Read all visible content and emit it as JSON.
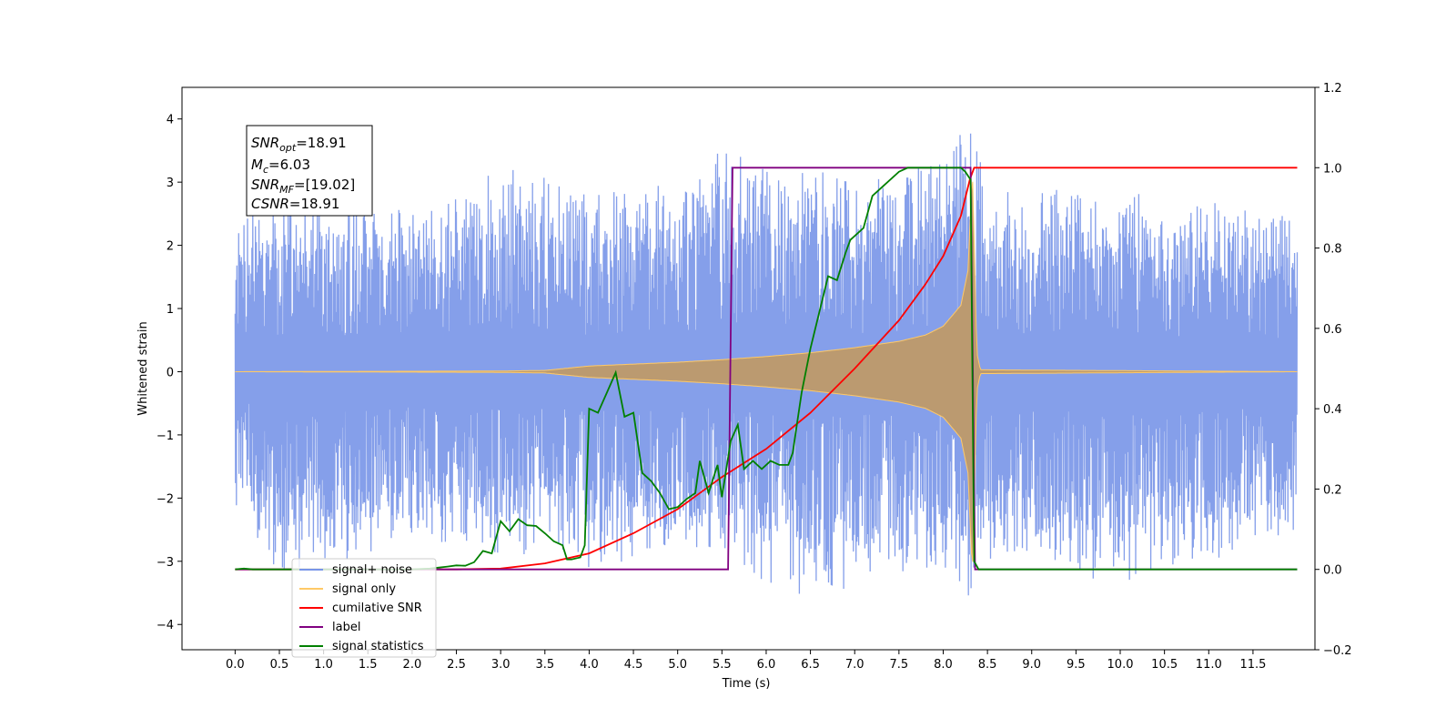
{
  "chart_data": {
    "type": "line",
    "xlabel": "Time (s)",
    "ylabel_left": "Whitened strain",
    "ylabel_right": "",
    "xlim": [
      -0.6,
      12.2
    ],
    "ylim_left": [
      -4.4,
      4.5
    ],
    "ylim_right": [
      -0.2,
      1.2
    ],
    "x_ticks": [
      0.0,
      0.5,
      1.0,
      1.5,
      2.0,
      2.5,
      3.0,
      3.5,
      4.0,
      4.5,
      5.0,
      5.5,
      6.0,
      6.5,
      7.0,
      7.5,
      8.0,
      8.5,
      9.0,
      9.5,
      10.0,
      10.5,
      11.0,
      11.5
    ],
    "x_tick_labels": [
      "0.0",
      "0.5",
      "1.0",
      "1.5",
      "2.0",
      "2.5",
      "3.0",
      "3.5",
      "4.0",
      "4.5",
      "5.0",
      "5.5",
      "6.0",
      "6.5",
      "7.0",
      "7.5",
      "8.0",
      "8.5",
      "9.0",
      "9.5",
      "10.0",
      "10.5",
      "11.0",
      "11.5"
    ],
    "y_ticks_left": [
      4,
      3,
      2,
      1,
      0,
      -1,
      -2,
      -3,
      -4
    ],
    "y_tick_labels_left": [
      "4",
      "3",
      "2",
      "1",
      "0",
      "−1",
      "−2",
      "−3",
      "−4"
    ],
    "y_ticks_right": [
      1.2,
      1.0,
      0.8,
      0.6,
      0.4,
      0.2,
      0.0,
      -0.2
    ],
    "y_tick_labels_right": [
      "1.2",
      "1.0",
      "0.8",
      "0.6",
      "0.4",
      "0.2",
      "0.0",
      "−0.2"
    ],
    "grid": false,
    "legend_position": "lower-left",
    "legend": [
      {
        "label": "signal+ noise",
        "color": "#7895e8"
      },
      {
        "label": "signal only",
        "color": "#ffc966"
      },
      {
        "label": "cumilative SNR",
        "color": "#ff0000"
      },
      {
        "label": "label",
        "color": "#800080"
      },
      {
        "label": "signal statistics",
        "color": "#008000"
      }
    ],
    "stats_box": {
      "lines": [
        {
          "sym": "SNR",
          "sub": "opt",
          "rest": "=18.91"
        },
        {
          "sym": "M",
          "sub": "c",
          "rest": "=6.03"
        },
        {
          "sym": "SNR",
          "sub": "MF",
          "rest": "=[19.02]"
        },
        {
          "sym": "CSNR",
          "sub": "",
          "rest": "=18.91"
        }
      ]
    },
    "series": [
      {
        "name": "signal+ noise",
        "axis": "left",
        "color": "#7895e8",
        "style": "noise_band",
        "x_range": [
          0.0,
          12.0
        ],
        "envelope_upper": [
          [
            0.0,
            2.4
          ],
          [
            0.5,
            2.7
          ],
          [
            1.0,
            2.9
          ],
          [
            1.5,
            2.8
          ],
          [
            2.0,
            2.6
          ],
          [
            2.5,
            2.8
          ],
          [
            3.0,
            3.3
          ],
          [
            3.5,
            3.2
          ],
          [
            4.0,
            2.8
          ],
          [
            4.5,
            3.0
          ],
          [
            5.0,
            2.9
          ],
          [
            5.5,
            3.6
          ],
          [
            6.0,
            3.2
          ],
          [
            6.5,
            3.3
          ],
          [
            7.0,
            3.0
          ],
          [
            7.5,
            3.1
          ],
          [
            8.0,
            3.4
          ],
          [
            8.3,
            4.1
          ],
          [
            8.5,
            2.9
          ],
          [
            9.0,
            2.8
          ],
          [
            9.5,
            3.0
          ],
          [
            10.0,
            2.9
          ],
          [
            10.5,
            2.8
          ],
          [
            11.0,
            2.7
          ],
          [
            11.5,
            2.6
          ],
          [
            12.0,
            2.4
          ]
        ],
        "envelope_lower": [
          [
            0.0,
            -2.2
          ],
          [
            0.5,
            -3.2
          ],
          [
            1.0,
            -3.0
          ],
          [
            1.5,
            -3.0
          ],
          [
            2.0,
            -2.8
          ],
          [
            2.5,
            -2.7
          ],
          [
            3.0,
            -3.0
          ],
          [
            3.5,
            -2.8
          ],
          [
            4.0,
            -3.1
          ],
          [
            4.5,
            -3.0
          ],
          [
            5.0,
            -2.9
          ],
          [
            5.5,
            -2.8
          ],
          [
            6.0,
            -3.4
          ],
          [
            6.5,
            -3.6
          ],
          [
            7.0,
            -3.4
          ],
          [
            7.5,
            -3.3
          ],
          [
            8.0,
            -3.1
          ],
          [
            8.3,
            -3.7
          ],
          [
            8.5,
            -3.0
          ],
          [
            9.0,
            -2.9
          ],
          [
            9.5,
            -3.2
          ],
          [
            10.0,
            -3.4
          ],
          [
            10.5,
            -3.1
          ],
          [
            11.0,
            -3.0
          ],
          [
            11.5,
            -2.9
          ],
          [
            12.0,
            -2.5
          ]
        ]
      },
      {
        "name": "signal only",
        "axis": "left",
        "color": "#ffc966",
        "style": "chirp",
        "envelope": [
          [
            0.0,
            0.0
          ],
          [
            3.0,
            0.01
          ],
          [
            3.5,
            0.02
          ],
          [
            4.0,
            0.09
          ],
          [
            4.5,
            0.12
          ],
          [
            5.0,
            0.15
          ],
          [
            5.5,
            0.19
          ],
          [
            6.0,
            0.24
          ],
          [
            6.5,
            0.3
          ],
          [
            7.0,
            0.38
          ],
          [
            7.5,
            0.48
          ],
          [
            7.8,
            0.58
          ],
          [
            8.0,
            0.72
          ],
          [
            8.2,
            1.05
          ],
          [
            8.28,
            1.6
          ],
          [
            8.33,
            3.2
          ],
          [
            8.38,
            0.3
          ],
          [
            8.42,
            0.03
          ],
          [
            12.0,
            0.0
          ]
        ]
      },
      {
        "name": "cumilative SNR",
        "axis": "right",
        "color": "#ff0000",
        "points": [
          [
            0.0,
            0.0
          ],
          [
            2.5,
            0.0
          ],
          [
            3.0,
            0.002
          ],
          [
            3.5,
            0.015
          ],
          [
            4.0,
            0.04
          ],
          [
            4.5,
            0.09
          ],
          [
            5.0,
            0.15
          ],
          [
            5.5,
            0.23
          ],
          [
            6.0,
            0.3
          ],
          [
            6.5,
            0.39
          ],
          [
            7.0,
            0.5
          ],
          [
            7.5,
            0.62
          ],
          [
            7.8,
            0.71
          ],
          [
            8.0,
            0.78
          ],
          [
            8.2,
            0.88
          ],
          [
            8.3,
            0.97
          ],
          [
            8.35,
            1.0
          ],
          [
            12.0,
            1.0
          ]
        ]
      },
      {
        "name": "label",
        "axis": "right",
        "color": "#800080",
        "points": [
          [
            0.0,
            0.0
          ],
          [
            5.57,
            0.0
          ],
          [
            5.62,
            1.0
          ],
          [
            8.31,
            1.0
          ],
          [
            8.36,
            0.0
          ],
          [
            12.0,
            0.0
          ]
        ]
      },
      {
        "name": "signal statistics",
        "axis": "right",
        "color": "#008000",
        "points": [
          [
            0.0,
            0.0
          ],
          [
            0.1,
            0.002
          ],
          [
            0.2,
            0.0
          ],
          [
            2.0,
            0.0
          ],
          [
            2.2,
            0.002
          ],
          [
            2.4,
            0.007
          ],
          [
            2.5,
            0.01
          ],
          [
            2.6,
            0.009
          ],
          [
            2.7,
            0.018
          ],
          [
            2.8,
            0.046
          ],
          [
            2.9,
            0.04
          ],
          [
            3.0,
            0.12
          ],
          [
            3.1,
            0.095
          ],
          [
            3.2,
            0.125
          ],
          [
            3.3,
            0.11
          ],
          [
            3.4,
            0.108
          ],
          [
            3.5,
            0.09
          ],
          [
            3.6,
            0.07
          ],
          [
            3.7,
            0.06
          ],
          [
            3.75,
            0.025
          ],
          [
            3.8,
            0.025
          ],
          [
            3.9,
            0.03
          ],
          [
            3.95,
            0.06
          ],
          [
            4.0,
            0.4
          ],
          [
            4.1,
            0.39
          ],
          [
            4.2,
            0.44
          ],
          [
            4.3,
            0.49
          ],
          [
            4.4,
            0.38
          ],
          [
            4.5,
            0.39
          ],
          [
            4.6,
            0.24
          ],
          [
            4.7,
            0.22
          ],
          [
            4.8,
            0.19
          ],
          [
            4.9,
            0.15
          ],
          [
            5.0,
            0.155
          ],
          [
            5.1,
            0.175
          ],
          [
            5.2,
            0.19
          ],
          [
            5.25,
            0.27
          ],
          [
            5.35,
            0.19
          ],
          [
            5.45,
            0.26
          ],
          [
            5.5,
            0.18
          ],
          [
            5.6,
            0.32
          ],
          [
            5.68,
            0.36
          ],
          [
            5.75,
            0.25
          ],
          [
            5.85,
            0.27
          ],
          [
            5.95,
            0.25
          ],
          [
            6.05,
            0.27
          ],
          [
            6.15,
            0.26
          ],
          [
            6.25,
            0.26
          ],
          [
            6.3,
            0.29
          ],
          [
            6.4,
            0.44
          ],
          [
            6.5,
            0.55
          ],
          [
            6.6,
            0.64
          ],
          [
            6.7,
            0.73
          ],
          [
            6.8,
            0.72
          ],
          [
            6.9,
            0.79
          ],
          [
            6.95,
            0.82
          ],
          [
            7.1,
            0.85
          ],
          [
            7.2,
            0.93
          ],
          [
            7.3,
            0.95
          ],
          [
            7.5,
            0.99
          ],
          [
            7.6,
            1.0
          ],
          [
            8.2,
            1.0
          ],
          [
            8.25,
            0.99
          ],
          [
            8.31,
            0.97
          ],
          [
            8.35,
            0.02
          ],
          [
            8.4,
            0.0
          ],
          [
            12.0,
            0.0
          ]
        ]
      }
    ]
  }
}
